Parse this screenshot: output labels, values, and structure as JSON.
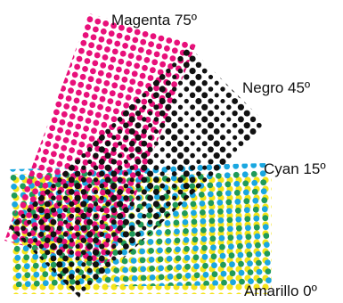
{
  "screens": [
    {
      "label": "Magenta 75º",
      "color": "#e8107a"
    },
    {
      "label": "Negro 45º",
      "color": "#111111"
    },
    {
      "label": "Cyan 15º",
      "color": "#1aa7e0"
    },
    {
      "label": "Amarillo 0º",
      "color": "#f4e41a"
    }
  ],
  "overlap_color_cyan_yellow": "#1f9a5a"
}
